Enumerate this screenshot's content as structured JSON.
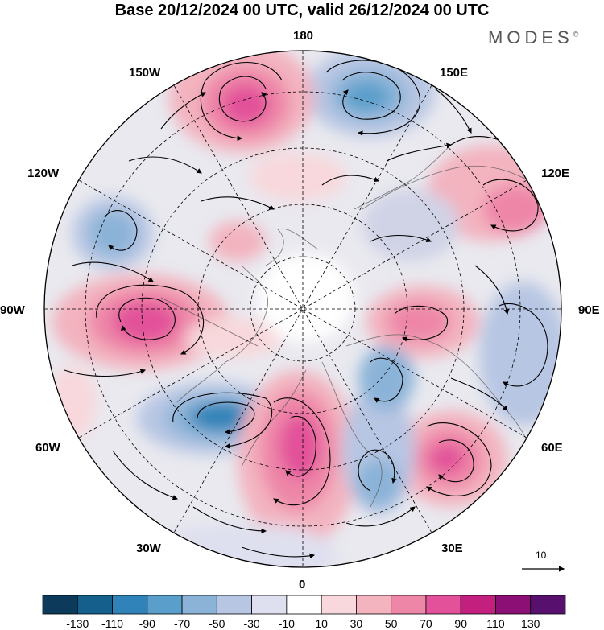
{
  "title": "Base 20/12/2024 00 UTC, valid 26/12/2024 00 UTC",
  "brand": "MODES",
  "brand_mark": "©",
  "longitude_labels": {
    "lon_180": "180",
    "lon_150e": "150E",
    "lon_120e": "120E",
    "lon_90e": "90E",
    "lon_60e": "60E",
    "lon_30e": "30E",
    "lon_0": "0",
    "lon_30w": "30W",
    "lon_60w": "60W",
    "lon_90w": "90W",
    "lon_120w": "120W",
    "lon_150w": "150W"
  },
  "reference_vector": {
    "label": "10"
  },
  "colorbar": {
    "ticks": [
      "-130",
      "-110",
      "-90",
      "-70",
      "-50",
      "-30",
      "-10",
      "10",
      "30",
      "50",
      "70",
      "90",
      "110",
      "130"
    ],
    "colors": [
      "#0b3a5a",
      "#155f8c",
      "#2f83b8",
      "#5a9fcb",
      "#8bb3d8",
      "#b7c6e3",
      "#dfe0ef",
      "#ffffff",
      "#f8d8dc",
      "#f3b3bf",
      "#ee86a8",
      "#e2519a",
      "#c21f7e",
      "#8c0f76",
      "#58106f"
    ]
  },
  "anomaly_centers": [
    {
      "id": "low-150e",
      "sign": "negative",
      "level": -70
    },
    {
      "id": "high-150w",
      "sign": "positive",
      "level": 70
    },
    {
      "id": "high-90w",
      "sign": "positive",
      "level": 70
    },
    {
      "id": "low-60w",
      "sign": "negative",
      "level": -90
    },
    {
      "id": "high-15w",
      "sign": "positive",
      "level": 90
    },
    {
      "id": "high-60e",
      "sign": "positive",
      "level": 70
    },
    {
      "id": "high-90e",
      "sign": "positive",
      "level": 50
    },
    {
      "id": "low-20e",
      "sign": "negative",
      "level": -50
    },
    {
      "id": "low-110w",
      "sign": "negative",
      "level": -50
    },
    {
      "id": "low-100e",
      "sign": "negative",
      "level": -30
    },
    {
      "id": "high-120e",
      "sign": "positive",
      "level": 30
    }
  ]
}
